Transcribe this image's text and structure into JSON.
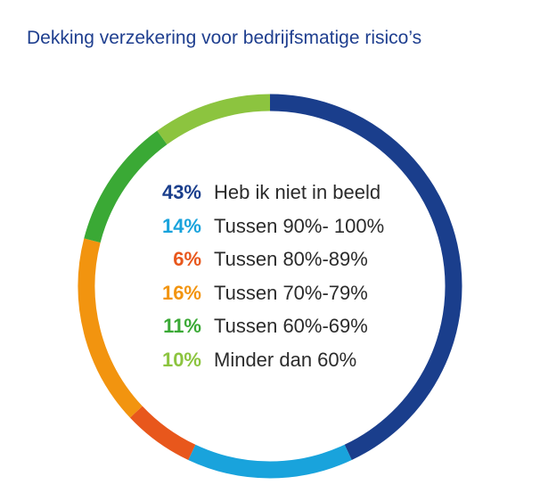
{
  "chart_data": {
    "type": "pie",
    "style": "donut",
    "title": "Dekking verzekering voor bedrijfsmatige risico’s",
    "slices": [
      {
        "label": "Heb ik niet in beeld",
        "value": 43,
        "display": "43%",
        "color": "#1a3e8c"
      },
      {
        "label": "Tussen 90%- 100%",
        "value": 14,
        "display": "14%",
        "color": "#19a3dc"
      },
      {
        "label": "Tussen 80%-89%",
        "value": 6,
        "display": "6%",
        "color": "#e8571c"
      },
      {
        "label": "Tussen 70%-79%",
        "value": 16,
        "display": "16%",
        "color": "#f2940f"
      },
      {
        "label": "Tussen 60%-69%",
        "value": 11,
        "display": "11%",
        "color": "#3aa935"
      },
      {
        "label": "Minder dan 60%",
        "value": 10,
        "display": "10%",
        "color": "#8cc43f"
      }
    ],
    "segment_order": [
      "Heb ik niet in beeld",
      "Tussen 90%- 100%",
      "Tussen 80%-89%",
      "Tussen 70%-79%",
      "Tussen 60%-69%",
      "Minder dan 60%"
    ],
    "start": "top",
    "direction": "clockwise",
    "legend": "center"
  }
}
